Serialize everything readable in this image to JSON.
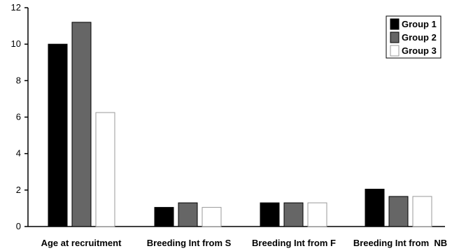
{
  "chart_data": {
    "type": "bar",
    "title": "",
    "xlabel": "",
    "ylabel": "",
    "ylim": [
      0,
      12
    ],
    "yticks": [
      0,
      2,
      4,
      6,
      8,
      10,
      12
    ],
    "grid": false,
    "legend_position": "top-right",
    "categories": [
      "Age at recruitment",
      "Breeding Int from S",
      "Breeding Int from F",
      "Breeding Int from  NB"
    ],
    "series": [
      {
        "name": "Group 1",
        "color": "#000000",
        "values": [
          10.0,
          1.05,
          1.3,
          2.05
        ]
      },
      {
        "name": "Group 2",
        "color": "#666666",
        "values": [
          11.2,
          1.3,
          1.3,
          1.65
        ]
      },
      {
        "name": "Group 3",
        "color": "#ffffff",
        "values": [
          6.25,
          1.05,
          1.3,
          1.65
        ]
      }
    ]
  }
}
